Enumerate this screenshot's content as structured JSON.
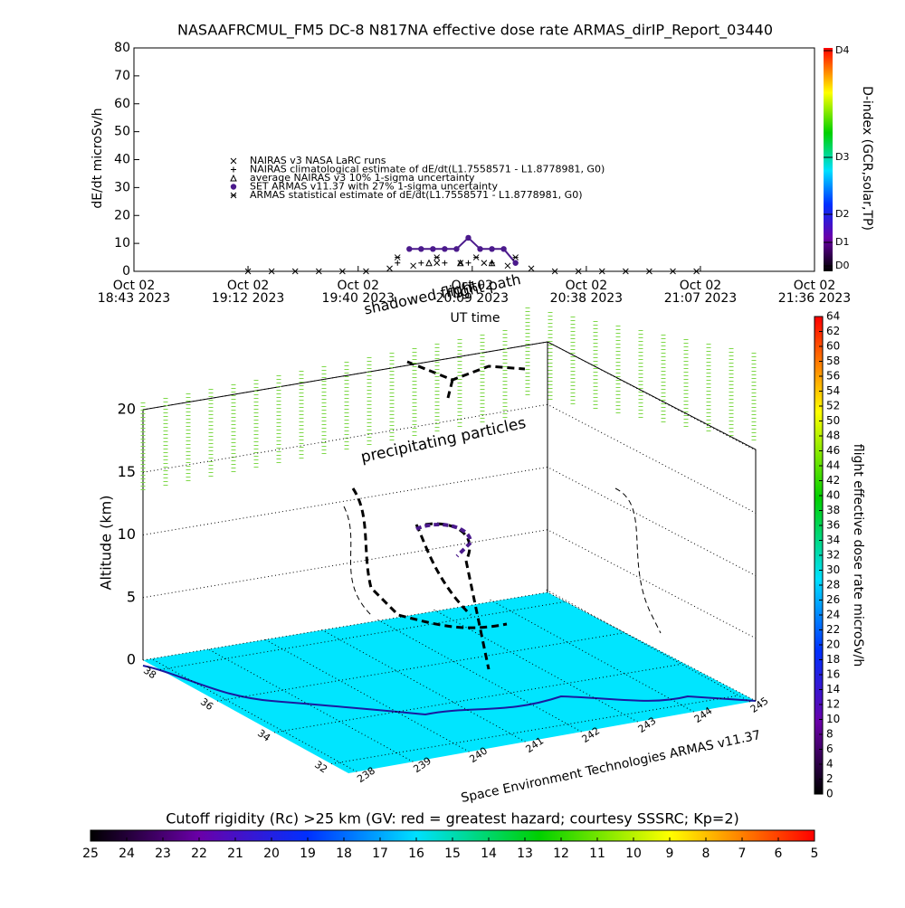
{
  "chart_data": [
    {
      "type": "line",
      "title": "NASAAFRCMUL_FM5 DC-8   N817NA effective dose rate ARMAS_dirIP_Report_03440",
      "y_label": "dE/dt microSv/h",
      "x_label": "UT time",
      "xlim": [
        "18:43",
        "21:36"
      ],
      "xticks": [
        {
          "value": "18:43",
          "label": [
            "Oct 02",
            "18:43 2023"
          ]
        },
        {
          "value": "19:12",
          "label": [
            "Oct 02",
            "19:12 2023"
          ]
        },
        {
          "value": "19:40",
          "label": [
            "Oct 02",
            "19:40 2023"
          ]
        },
        {
          "value": "20:09",
          "label": [
            "Oct 02",
            "20:09 2023"
          ]
        },
        {
          "value": "20:38",
          "label": [
            "Oct 02",
            "20:38 2023"
          ]
        },
        {
          "value": "21:07",
          "label": [
            "Oct 02",
            "21:07 2023"
          ]
        },
        {
          "value": "21:36",
          "label": [
            "Oct 02",
            "21:36 2023"
          ]
        }
      ],
      "ylim": [
        0,
        80
      ],
      "yticks": [
        0,
        10,
        20,
        30,
        40,
        50,
        60,
        70,
        80
      ],
      "series": [
        {
          "name": "NAIRAS v3 NASA LaRC runs",
          "color": "#000000",
          "marker": "x",
          "x": [
            "19:12",
            "19:18",
            "19:24",
            "19:30",
            "19:36",
            "19:42",
            "19:48",
            "19:54",
            "20:00",
            "20:06",
            "20:12",
            "20:18",
            "20:24",
            "20:30",
            "20:36",
            "20:42",
            "20:48",
            "20:54",
            "21:00",
            "21:06"
          ],
          "values": [
            0,
            0,
            0,
            0,
            0,
            0,
            1,
            2,
            3,
            3,
            3,
            2,
            1,
            0,
            0,
            0,
            0,
            0,
            0,
            0
          ]
        },
        {
          "name": "NAIRAS climatological estimate of dE/dt(L1.7558571 - L1.8778981, G0)",
          "color": "#000000",
          "marker": "plus",
          "x": [
            "19:50",
            "19:56",
            "20:02",
            "20:08",
            "20:14",
            "20:20"
          ],
          "values": [
            3,
            3,
            3,
            3,
            3,
            3
          ]
        },
        {
          "name": "average NAIRAS v3 10% 1-sigma uncertainty",
          "color": "#000000",
          "marker": "tri",
          "x": [
            "19:58",
            "20:06",
            "20:14"
          ],
          "values": [
            3,
            3,
            3
          ]
        },
        {
          "name": "SET ARMAS v11.37 with 27% 1-sigma uncertainty",
          "color": "#4b1a8c",
          "marker": "dot",
          "x": [
            "19:53",
            "19:56",
            "19:59",
            "20:02",
            "20:05",
            "20:08",
            "20:11",
            "20:14",
            "20:17",
            "20:20"
          ],
          "values": [
            8,
            8,
            8,
            8,
            8,
            12,
            8,
            8,
            8,
            3
          ]
        },
        {
          "name": "ARMAS statistical estimate of dE/dt(L1.7558571 - L1.8778981, G0)",
          "color": "#000000",
          "marker": "star",
          "x": [
            "19:50",
            "20:00",
            "20:10",
            "20:20"
          ],
          "values": [
            5,
            5,
            5,
            5
          ]
        }
      ]
    },
    {
      "type": "colorbar",
      "label": "D-index (GCR,solar,TP)",
      "ticks": [
        {
          "value": 0,
          "label": "D0"
        },
        {
          "value": 1,
          "label": "D1"
        },
        {
          "value": 2,
          "label": "D2"
        },
        {
          "value": 3,
          "label": "D3"
        },
        {
          "value": 4,
          "label": "D4"
        }
      ]
    },
    {
      "type": "colorbar",
      "label": "flight effective dose rate microSv/h",
      "ylim": [
        0,
        64
      ],
      "yticks": [
        0,
        2,
        4,
        6,
        8,
        10,
        12,
        14,
        16,
        18,
        20,
        22,
        24,
        26,
        28,
        30,
        32,
        34,
        36,
        38,
        40,
        42,
        44,
        46,
        48,
        50,
        52,
        54,
        56,
        58,
        60,
        62,
        64
      ]
    },
    {
      "type": "colorbar",
      "label": "Cutoff rigidity (Rc) >25 km (GV: red = greatest hazard; courtesy SSSRC; Kp=2)",
      "xlim": [
        25,
        5
      ],
      "xticks": [
        25,
        24,
        23,
        22,
        21,
        20,
        19,
        18,
        17,
        16,
        15,
        14,
        13,
        12,
        11,
        10,
        9,
        8,
        7,
        6,
        5
      ]
    },
    {
      "type": "box3d",
      "z_label": "Altitude (km)",
      "zlim": [
        0,
        20
      ],
      "zticks": [
        0,
        5,
        10,
        15,
        20
      ],
      "latlim": [
        38.6,
        31.4
      ],
      "latticks": [
        38,
        36,
        34,
        32
      ],
      "lonlim": [
        237.85,
        245.1
      ],
      "lonticks": [
        238,
        239,
        240,
        241,
        242,
        243,
        244,
        245
      ],
      "annotations": [
        "precipitating particles",
        "flight path",
        "shadowed flight",
        "Space Environment Technologies ARMAS v11.37"
      ]
    }
  ]
}
